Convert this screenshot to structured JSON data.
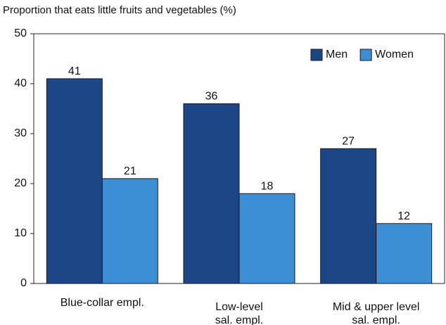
{
  "chart_data": {
    "type": "bar",
    "title": "Proportion that eats little fruits and vegetables (%)",
    "categories": [
      "Blue-collar empl.",
      "Low-level\nsal. empl.",
      "Mid & upper level\nsal. empl."
    ],
    "series": [
      {
        "name": "Men",
        "color": "#1b4788",
        "values": [
          41,
          36,
          27
        ]
      },
      {
        "name": "Women",
        "color": "#3d8fd5",
        "values": [
          21,
          18,
          12
        ]
      }
    ],
    "ylim": [
      0,
      50
    ],
    "yticks": [
      0,
      10,
      20,
      30,
      40,
      50
    ],
    "legend": "upper right"
  }
}
